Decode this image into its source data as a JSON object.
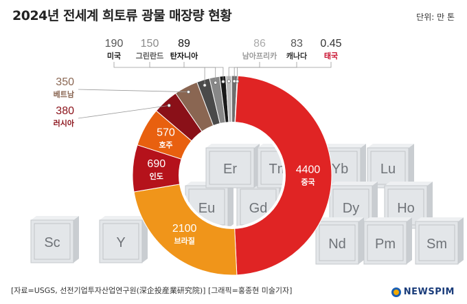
{
  "header": {
    "title": "2024년 전세계 희토류 광물 매장량 현황",
    "unit": "단위: 만 톤"
  },
  "footer": {
    "source": "[자료=USGS, 선전기업투자산업연구원(深企投産業研究院)] [그래픽=홍종현 미술기자]",
    "logo": "NEWSPIM"
  },
  "elements": [
    "Sc",
    "Y",
    "Eu",
    "Gd",
    "Er",
    "Tm",
    "Yb",
    "Lu",
    "Dy",
    "Ho",
    "Nd",
    "Pm",
    "Sm"
  ],
  "chart_data": {
    "type": "pie",
    "title": "2024년 전세계 희토류 광물 매장량 현황",
    "unit": "만 톤",
    "donut": true,
    "slices": [
      {
        "label": "중국",
        "value": 4400,
        "color": "#e02424"
      },
      {
        "label": "브라질",
        "value": 2100,
        "color": "#f0951a"
      },
      {
        "label": "인도",
        "value": 690,
        "color": "#b5121b"
      },
      {
        "label": "호주",
        "value": 570,
        "color": "#e8600f"
      },
      {
        "label": "러시아",
        "value": 380,
        "color": "#8a1018"
      },
      {
        "label": "베트남",
        "value": 350,
        "color": "#8a6652"
      },
      {
        "label": "미국",
        "value": 190,
        "color": "#4a4a4a"
      },
      {
        "label": "그린란드",
        "value": 150,
        "color": "#888888"
      },
      {
        "label": "탄자니아",
        "value": 89,
        "color": "#1a1a1a"
      },
      {
        "label": "남아프리카",
        "value": 86,
        "color": "#bdbdbd"
      },
      {
        "label": "캐나다",
        "value": 83,
        "color": "#6e6e6e"
      },
      {
        "label": "태국",
        "value": 0.45,
        "color": "#c8102e"
      }
    ]
  }
}
